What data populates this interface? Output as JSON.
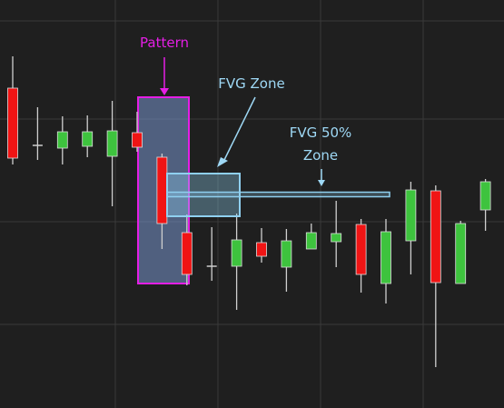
{
  "chart_data": {
    "type": "candlestick",
    "grid": true,
    "colors": {
      "background": "#1f1f1f",
      "grid": "#3a3a3a",
      "bullish": "#3ec33e",
      "bearish": "#f01414",
      "wick": "#cfcfcf",
      "pattern": "#e51ee5",
      "fvg": "#8fd0f0"
    },
    "ylim": [
      0,
      449
    ],
    "candles": [
      {
        "open": 352,
        "high": 387,
        "low": 268,
        "close": 275
      },
      {
        "open": 288,
        "high": 331,
        "low": 273,
        "close": 289
      },
      {
        "open": 286,
        "high": 321,
        "low": 268,
        "close": 304
      },
      {
        "open": 288,
        "high": 322,
        "low": 276,
        "close": 304
      },
      {
        "open": 277,
        "high": 338,
        "low": 222,
        "close": 305
      },
      {
        "open": 303,
        "high": 326,
        "low": 282,
        "close": 287
      },
      {
        "open": 276,
        "high": 280,
        "low": 175,
        "close": 203
      },
      {
        "open": 193,
        "high": 213,
        "low": 135,
        "close": 147
      },
      {
        "open": 155,
        "high": 199,
        "low": 140,
        "close": 156
      },
      {
        "open": 156,
        "high": 214,
        "low": 108,
        "close": 185
      },
      {
        "open": 182,
        "high": 198,
        "low": 160,
        "close": 167
      },
      {
        "open": 155,
        "high": 197,
        "low": 128,
        "close": 184
      },
      {
        "open": 175,
        "high": 203,
        "low": 175,
        "close": 193
      },
      {
        "open": 183,
        "high": 228,
        "low": 155,
        "close": 192
      },
      {
        "open": 202,
        "high": 208,
        "low": 127,
        "close": 147
      },
      {
        "open": 137,
        "high": 208,
        "low": 115,
        "close": 194
      },
      {
        "open": 184,
        "high": 249,
        "low": 147,
        "close": 240
      },
      {
        "open": 239,
        "high": 245,
        "low": 45,
        "close": 138
      },
      {
        "open": 137,
        "high": 206,
        "low": 137,
        "close": 203
      },
      {
        "open": 218,
        "high": 252,
        "low": 195,
        "close": 249
      }
    ],
    "fvg_zone": {
      "top": 258,
      "bottom": 211
    },
    "fvg_50": 235,
    "annotations": {
      "pattern": "Pattern",
      "fvg_zone": "FVG Zone",
      "fvg_50_line1": "FVG 50%",
      "fvg_50_line2": "Zone"
    }
  }
}
